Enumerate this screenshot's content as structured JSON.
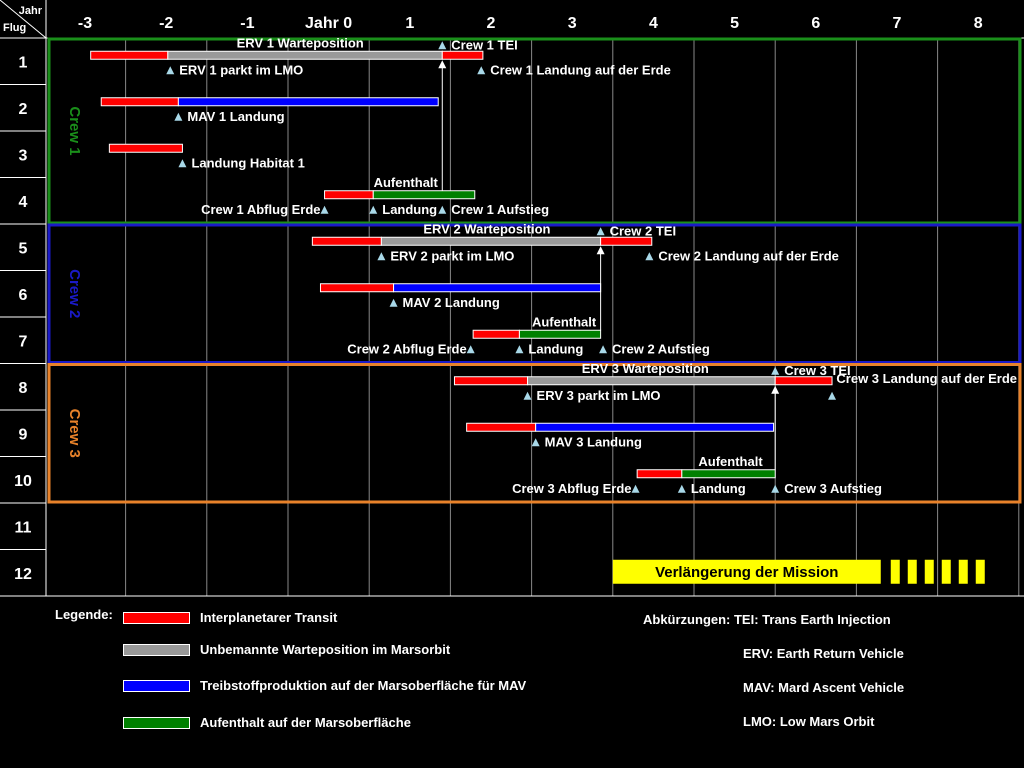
{
  "chart_data": {
    "type": "gantt",
    "axis_corner": {
      "top": "Jahr",
      "bottom": "Flug"
    },
    "x_ticks": [
      "-3",
      "-2",
      "-1",
      "Jahr 0",
      "1",
      "2",
      "3",
      "4",
      "5",
      "6",
      "7",
      "8"
    ],
    "x_range": [
      -3,
      8
    ],
    "flights": [
      "1",
      "2",
      "3",
      "4",
      "5",
      "6",
      "7",
      "8",
      "9",
      "10",
      "11",
      "12"
    ],
    "crews": [
      {
        "name": "Crew 1",
        "color": "#1a8f1a",
        "flights": [
          1,
          4
        ]
      },
      {
        "name": "Crew 2",
        "color": "#1a1ac8",
        "flights": [
          5,
          7
        ]
      },
      {
        "name": "Crew 3",
        "color": "#e8822a",
        "flights": [
          8,
          10
        ]
      }
    ],
    "bars": [
      {
        "flight": 1,
        "start": -2.93,
        "end": -1.98,
        "kind": "transit"
      },
      {
        "flight": 1,
        "start": -1.98,
        "end": 1.4,
        "kind": "waiting"
      },
      {
        "flight": 1,
        "start": 1.4,
        "end": 1.9,
        "kind": "transit"
      },
      {
        "flight": 2,
        "start": -2.8,
        "end": -1.85,
        "kind": "transit"
      },
      {
        "flight": 2,
        "start": -1.85,
        "end": 1.35,
        "kind": "fuel"
      },
      {
        "flight": 3,
        "start": -2.7,
        "end": -1.8,
        "kind": "transit"
      },
      {
        "flight": 4,
        "start": -0.05,
        "end": 0.55,
        "kind": "transit"
      },
      {
        "flight": 4,
        "start": 0.55,
        "end": 1.8,
        "kind": "stay"
      },
      {
        "flight": 5,
        "start": -0.2,
        "end": 0.65,
        "kind": "transit"
      },
      {
        "flight": 5,
        "start": 0.65,
        "end": 3.35,
        "kind": "waiting"
      },
      {
        "flight": 5,
        "start": 3.35,
        "end": 3.98,
        "kind": "transit"
      },
      {
        "flight": 6,
        "start": -0.1,
        "end": 0.8,
        "kind": "transit"
      },
      {
        "flight": 6,
        "start": 0.8,
        "end": 3.35,
        "kind": "fuel"
      },
      {
        "flight": 7,
        "start": 1.78,
        "end": 2.35,
        "kind": "transit"
      },
      {
        "flight": 7,
        "start": 2.35,
        "end": 3.35,
        "kind": "stay"
      },
      {
        "flight": 8,
        "start": 1.55,
        "end": 2.45,
        "kind": "transit"
      },
      {
        "flight": 8,
        "start": 2.45,
        "end": 5.5,
        "kind": "waiting"
      },
      {
        "flight": 8,
        "start": 5.5,
        "end": 6.2,
        "kind": "transit"
      },
      {
        "flight": 9,
        "start": 1.7,
        "end": 2.55,
        "kind": "transit"
      },
      {
        "flight": 9,
        "start": 2.55,
        "end": 5.48,
        "kind": "fuel"
      },
      {
        "flight": 10,
        "start": 3.8,
        "end": 4.35,
        "kind": "transit"
      },
      {
        "flight": 10,
        "start": 4.35,
        "end": 5.5,
        "kind": "stay"
      }
    ],
    "events": [
      {
        "flight": 1,
        "x": 1.4,
        "above": true,
        "text": "Crew 1 TEI",
        "align": "right"
      },
      {
        "flight": 1,
        "x": -1.95,
        "above": false,
        "text": "ERV 1 parkt im LMO",
        "align": "right"
      },
      {
        "flight": 1,
        "x": 1.88,
        "above": false,
        "text": "Crew 1 Landung auf der Erde",
        "align": "right"
      },
      {
        "flight": 2,
        "x": -1.85,
        "above": false,
        "text": "MAV 1 Landung",
        "align": "right"
      },
      {
        "flight": 3,
        "x": -1.8,
        "above": false,
        "text": "Landung Habitat 1",
        "align": "right"
      },
      {
        "flight": 4,
        "x": -0.05,
        "above": false,
        "text": "Crew 1 Abflug Erde",
        "align": "left"
      },
      {
        "flight": 4,
        "x": 0.55,
        "above": false,
        "text": "Landung",
        "align": "right"
      },
      {
        "flight": 4,
        "x": 1.4,
        "above": false,
        "text": "Crew 1 Aufstieg",
        "align": "right"
      },
      {
        "flight": 5,
        "x": 3.35,
        "above": true,
        "text": "Crew 2 TEI",
        "align": "right"
      },
      {
        "flight": 5,
        "x": 0.65,
        "above": false,
        "text": "ERV 2 parkt im LMO",
        "align": "right"
      },
      {
        "flight": 5,
        "x": 3.95,
        "above": false,
        "text": "Crew 2 Landung auf der Erde",
        "align": "right"
      },
      {
        "flight": 6,
        "x": 0.8,
        "above": false,
        "text": "MAV 2 Landung",
        "align": "right"
      },
      {
        "flight": 7,
        "x": 1.75,
        "above": false,
        "text": "Crew 2 Abflug Erde",
        "align": "left"
      },
      {
        "flight": 7,
        "x": 2.35,
        "above": false,
        "text": "Landung",
        "align": "right"
      },
      {
        "flight": 7,
        "x": 3.38,
        "above": false,
        "text": "Crew 2 Aufstieg",
        "align": "right"
      },
      {
        "flight": 8,
        "x": 5.5,
        "above": true,
        "text": "Crew 3 TEI",
        "align": "right"
      },
      {
        "flight": 8,
        "x": 2.45,
        "above": false,
        "text": "ERV 3 parkt im LMO",
        "align": "right"
      },
      {
        "flight": 8,
        "x": 6.2,
        "above": false,
        "text": "Crew 3 Landung auf der Erde",
        "align": "none"
      },
      {
        "flight": 9,
        "x": 2.55,
        "above": false,
        "text": "MAV 3 Landung",
        "align": "right"
      },
      {
        "flight": 10,
        "x": 3.78,
        "above": false,
        "text": "Crew 3 Abflug Erde",
        "align": "left"
      },
      {
        "flight": 10,
        "x": 4.35,
        "above": false,
        "text": "Landung",
        "align": "right"
      },
      {
        "flight": 10,
        "x": 5.5,
        "above": false,
        "text": "Crew 3 Aufstieg",
        "align": "right"
      }
    ],
    "bar_labels": [
      {
        "flight": 1,
        "x": -0.35,
        "text": "ERV 1 Warteposition"
      },
      {
        "flight": 4,
        "x": 0.95,
        "text": "Aufenthalt"
      },
      {
        "flight": 5,
        "x": 1.95,
        "text": "ERV 2 Warteposition"
      },
      {
        "flight": 7,
        "x": 2.9,
        "text": "Aufenthalt"
      },
      {
        "flight": 8,
        "x": 3.9,
        "text": "ERV 3 Warteposition"
      },
      {
        "flight": 10,
        "x": 4.95,
        "text": "Aufenthalt"
      }
    ],
    "ascents": [
      {
        "x": 1.4,
        "from_flight": 4,
        "to_flight": 1
      },
      {
        "x": 3.35,
        "from_flight": 7,
        "to_flight": 5
      },
      {
        "x": 5.5,
        "from_flight": 10,
        "to_flight": 8
      }
    ],
    "extension": {
      "flight": 12,
      "start": 3.5,
      "end": 6.8,
      "dashed_end": 8.3,
      "text": "Verlängerung der Mission",
      "color": "#ffff00"
    }
  },
  "legend": {
    "title": "Legende:",
    "items": [
      {
        "label": "Interplanetarer Transit",
        "color": "#ff0000"
      },
      {
        "label": "Unbemannte Warteposition im Marsorbit",
        "color": "#999999"
      },
      {
        "label": "Treibstoffproduktion auf der Marsoberfläche für MAV",
        "color": "#0000ff"
      },
      {
        "label": "Aufenthalt auf der Marsoberfläche",
        "color": "#008000"
      }
    ]
  },
  "abbreviations": {
    "line1": "Abkürzungen: TEI: Trans Earth Injection",
    "line2": "ERV: Earth Return Vehicle",
    "line3": "MAV: Mard Ascent Vehicle",
    "line4": "LMO: Low Mars Orbit"
  },
  "colors": {
    "transit": "#ff0000",
    "waiting": "#999999",
    "fuel": "#0000ff",
    "stay": "#008000",
    "marker": "#a8d8e8"
  }
}
